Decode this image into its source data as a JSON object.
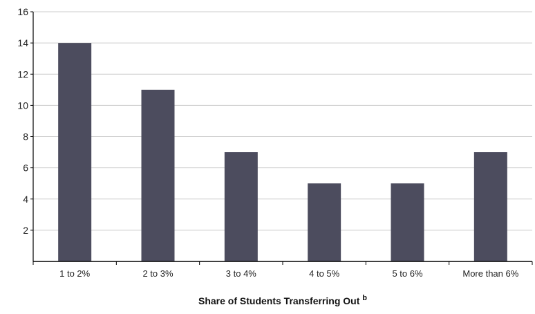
{
  "chart_data": {
    "type": "bar",
    "categories": [
      "1 to 2%",
      "2 to 3%",
      "3 to 4%",
      "4 to 5%",
      "5 to 6%",
      "More than 6%"
    ],
    "values": [
      14,
      11,
      7,
      5,
      5,
      7
    ],
    "title": "",
    "xlabel": "Share of Students Transferring Out",
    "xlabel_superscript": "b",
    "ylabel": "",
    "ylim": [
      0,
      16
    ],
    "yticks": [
      "2",
      "4",
      "6",
      "8",
      "10",
      "12",
      "14",
      "16"
    ],
    "grid": "horizontal",
    "legend": "none",
    "colors": {
      "bar": "#4c4c5e",
      "grid": "#cccccc",
      "axis": "#000000"
    }
  }
}
